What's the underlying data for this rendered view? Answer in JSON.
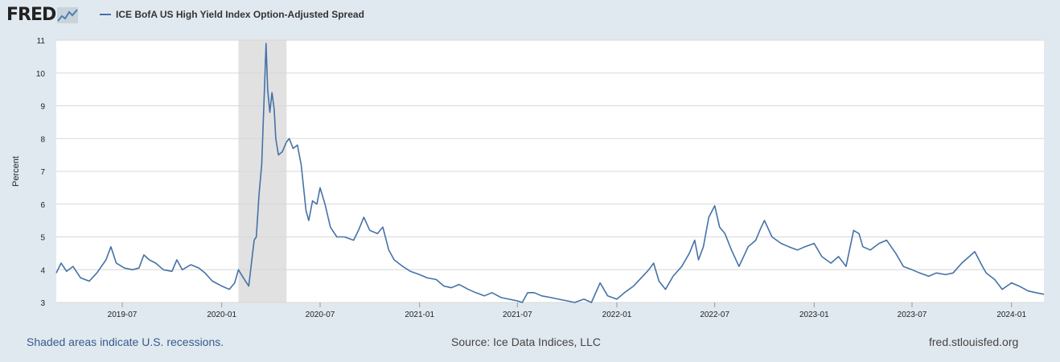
{
  "header": {
    "logo_text": "FRED",
    "legend_label": "ICE BofA US High Yield Index Option-Adjusted Spread"
  },
  "footer": {
    "recession_note": "Shaded areas indicate U.S. recessions.",
    "source": "Source: Ice Data Indices, LLC",
    "site": "fred.stlouisfed.org"
  },
  "colors": {
    "series": "#4572a7",
    "background": "#e1e9f0",
    "plot_background": "#ffffff",
    "recession_shade": "#e1e1e1",
    "grid": "#d8d8d8"
  },
  "chart_data": {
    "type": "line",
    "title": "",
    "xlabel": "",
    "ylabel": "Percent",
    "ylim": [
      3,
      11
    ],
    "xlim": [
      "2019-03-01",
      "2024-03-01"
    ],
    "y_ticks": [
      "3",
      "4",
      "5",
      "6",
      "7",
      "8",
      "9",
      "10",
      "11"
    ],
    "x_ticks": [
      "2019-07",
      "2020-01",
      "2020-07",
      "2021-01",
      "2021-07",
      "2022-01",
      "2022-07",
      "2023-01",
      "2023-07",
      "2024-01"
    ],
    "grid": true,
    "legend_position": "top-left",
    "recessions": [
      {
        "start": "2020-02-01",
        "end": "2020-04-30"
      }
    ],
    "series": [
      {
        "name": "ICE BofA US High Yield Index Option-Adjusted Spread",
        "points": [
          [
            "2019-03-01",
            3.9
          ],
          [
            "2019-03-10",
            4.2
          ],
          [
            "2019-03-20",
            3.95
          ],
          [
            "2019-04-01",
            4.1
          ],
          [
            "2019-04-15",
            3.75
          ],
          [
            "2019-05-01",
            3.65
          ],
          [
            "2019-05-15",
            3.9
          ],
          [
            "2019-06-01",
            4.3
          ],
          [
            "2019-06-10",
            4.7
          ],
          [
            "2019-06-20",
            4.2
          ],
          [
            "2019-07-05",
            4.05
          ],
          [
            "2019-07-20",
            4.0
          ],
          [
            "2019-08-01",
            4.05
          ],
          [
            "2019-08-10",
            4.45
          ],
          [
            "2019-08-20",
            4.3
          ],
          [
            "2019-09-01",
            4.2
          ],
          [
            "2019-09-15",
            4.0
          ],
          [
            "2019-10-01",
            3.95
          ],
          [
            "2019-10-10",
            4.3
          ],
          [
            "2019-10-20",
            4.0
          ],
          [
            "2019-11-05",
            4.15
          ],
          [
            "2019-11-20",
            4.05
          ],
          [
            "2019-12-01",
            3.9
          ],
          [
            "2019-12-15",
            3.65
          ],
          [
            "2020-01-01",
            3.5
          ],
          [
            "2020-01-15",
            3.4
          ],
          [
            "2020-01-25",
            3.6
          ],
          [
            "2020-02-01",
            4.0
          ],
          [
            "2020-02-10",
            3.75
          ],
          [
            "2020-02-20",
            3.5
          ],
          [
            "2020-03-01",
            4.9
          ],
          [
            "2020-03-05",
            5.0
          ],
          [
            "2020-03-10",
            6.3
          ],
          [
            "2020-03-15",
            7.2
          ],
          [
            "2020-03-20",
            9.5
          ],
          [
            "2020-03-23",
            10.9
          ],
          [
            "2020-03-26",
            9.5
          ],
          [
            "2020-03-30",
            8.8
          ],
          [
            "2020-04-03",
            9.4
          ],
          [
            "2020-04-07",
            8.9
          ],
          [
            "2020-04-10",
            8.0
          ],
          [
            "2020-04-15",
            7.5
          ],
          [
            "2020-04-22",
            7.6
          ],
          [
            "2020-04-30",
            7.9
          ],
          [
            "2020-05-05",
            8.0
          ],
          [
            "2020-05-12",
            7.7
          ],
          [
            "2020-05-20",
            7.8
          ],
          [
            "2020-05-27",
            7.2
          ],
          [
            "2020-06-05",
            5.8
          ],
          [
            "2020-06-10",
            5.5
          ],
          [
            "2020-06-17",
            6.1
          ],
          [
            "2020-06-25",
            6.0
          ],
          [
            "2020-07-01",
            6.5
          ],
          [
            "2020-07-10",
            6.0
          ],
          [
            "2020-07-20",
            5.3
          ],
          [
            "2020-08-01",
            5.0
          ],
          [
            "2020-08-15",
            5.0
          ],
          [
            "2020-09-01",
            4.9
          ],
          [
            "2020-09-10",
            5.2
          ],
          [
            "2020-09-20",
            5.6
          ],
          [
            "2020-10-01",
            5.2
          ],
          [
            "2020-10-15",
            5.1
          ],
          [
            "2020-10-25",
            5.3
          ],
          [
            "2020-11-05",
            4.6
          ],
          [
            "2020-11-15",
            4.3
          ],
          [
            "2020-12-01",
            4.1
          ],
          [
            "2020-12-15",
            3.95
          ],
          [
            "2021-01-01",
            3.85
          ],
          [
            "2021-01-15",
            3.75
          ],
          [
            "2021-02-01",
            3.7
          ],
          [
            "2021-02-15",
            3.5
          ],
          [
            "2021-03-01",
            3.45
          ],
          [
            "2021-03-15",
            3.55
          ],
          [
            "2021-04-01",
            3.4
          ],
          [
            "2021-04-15",
            3.3
          ],
          [
            "2021-05-01",
            3.2
          ],
          [
            "2021-05-15",
            3.3
          ],
          [
            "2021-06-01",
            3.15
          ],
          [
            "2021-06-15",
            3.1
          ],
          [
            "2021-07-01",
            3.05
          ],
          [
            "2021-07-10",
            3.0
          ],
          [
            "2021-07-20",
            3.3
          ],
          [
            "2021-08-01",
            3.3
          ],
          [
            "2021-08-15",
            3.2
          ],
          [
            "2021-09-01",
            3.15
          ],
          [
            "2021-09-15",
            3.1
          ],
          [
            "2021-10-01",
            3.05
          ],
          [
            "2021-10-15",
            3.0
          ],
          [
            "2021-11-01",
            3.1
          ],
          [
            "2021-11-15",
            3.0
          ],
          [
            "2021-12-01",
            3.6
          ],
          [
            "2021-12-15",
            3.2
          ],
          [
            "2022-01-01",
            3.1
          ],
          [
            "2022-01-15",
            3.3
          ],
          [
            "2022-02-01",
            3.5
          ],
          [
            "2022-02-15",
            3.75
          ],
          [
            "2022-03-01",
            4.0
          ],
          [
            "2022-03-10",
            4.2
          ],
          [
            "2022-03-20",
            3.65
          ],
          [
            "2022-04-01",
            3.4
          ],
          [
            "2022-04-15",
            3.8
          ],
          [
            "2022-05-01",
            4.1
          ],
          [
            "2022-05-15",
            4.5
          ],
          [
            "2022-05-25",
            4.9
          ],
          [
            "2022-06-01",
            4.3
          ],
          [
            "2022-06-10",
            4.7
          ],
          [
            "2022-06-20",
            5.6
          ],
          [
            "2022-07-01",
            5.95
          ],
          [
            "2022-07-10",
            5.3
          ],
          [
            "2022-07-20",
            5.1
          ],
          [
            "2022-08-01",
            4.6
          ],
          [
            "2022-08-15",
            4.1
          ],
          [
            "2022-09-01",
            4.7
          ],
          [
            "2022-09-15",
            4.9
          ],
          [
            "2022-09-25",
            5.3
          ],
          [
            "2022-10-01",
            5.5
          ],
          [
            "2022-10-15",
            5.0
          ],
          [
            "2022-11-01",
            4.8
          ],
          [
            "2022-11-15",
            4.7
          ],
          [
            "2022-12-01",
            4.6
          ],
          [
            "2022-12-15",
            4.7
          ],
          [
            "2023-01-01",
            4.8
          ],
          [
            "2023-01-15",
            4.4
          ],
          [
            "2023-02-01",
            4.2
          ],
          [
            "2023-02-15",
            4.4
          ],
          [
            "2023-03-01",
            4.1
          ],
          [
            "2023-03-10",
            4.8
          ],
          [
            "2023-03-15",
            5.2
          ],
          [
            "2023-03-25",
            5.1
          ],
          [
            "2023-04-01",
            4.7
          ],
          [
            "2023-04-15",
            4.6
          ],
          [
            "2023-05-01",
            4.8
          ],
          [
            "2023-05-15",
            4.9
          ],
          [
            "2023-06-01",
            4.5
          ],
          [
            "2023-06-15",
            4.1
          ],
          [
            "2023-07-01",
            4.0
          ],
          [
            "2023-07-15",
            3.9
          ],
          [
            "2023-08-01",
            3.8
          ],
          [
            "2023-08-15",
            3.9
          ],
          [
            "2023-09-01",
            3.85
          ],
          [
            "2023-09-15",
            3.9
          ],
          [
            "2023-10-01",
            4.2
          ],
          [
            "2023-10-15",
            4.4
          ],
          [
            "2023-10-25",
            4.55
          ],
          [
            "2023-11-05",
            4.2
          ],
          [
            "2023-11-15",
            3.9
          ],
          [
            "2023-12-01",
            3.7
          ],
          [
            "2023-12-15",
            3.4
          ],
          [
            "2024-01-01",
            3.6
          ],
          [
            "2024-01-15",
            3.5
          ],
          [
            "2024-02-01",
            3.35
          ],
          [
            "2024-02-15",
            3.3
          ],
          [
            "2024-03-01",
            3.25
          ]
        ]
      }
    ]
  }
}
